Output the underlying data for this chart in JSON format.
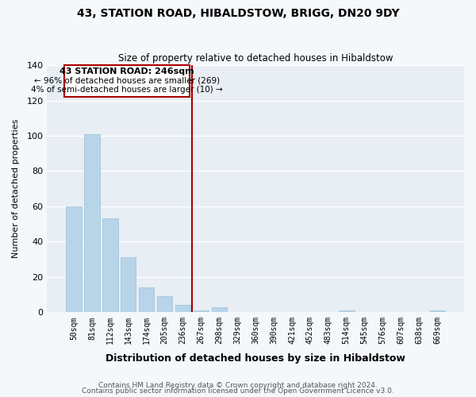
{
  "title": "43, STATION ROAD, HIBALDSTOW, BRIGG, DN20 9DY",
  "subtitle": "Size of property relative to detached houses in Hibaldstow",
  "xlabel": "Distribution of detached houses by size in Hibaldstow",
  "ylabel": "Number of detached properties",
  "bar_color": "#b8d4e8",
  "bar_edge_color": "#9bbfd8",
  "categories": [
    "50sqm",
    "81sqm",
    "112sqm",
    "143sqm",
    "174sqm",
    "205sqm",
    "236sqm",
    "267sqm",
    "298sqm",
    "329sqm",
    "360sqm",
    "390sqm",
    "421sqm",
    "452sqm",
    "483sqm",
    "514sqm",
    "545sqm",
    "576sqm",
    "607sqm",
    "638sqm",
    "669sqm"
  ],
  "values": [
    60,
    101,
    53,
    31,
    14,
    9,
    4,
    1,
    3,
    0,
    0,
    0,
    0,
    0,
    0,
    1,
    0,
    0,
    0,
    0,
    1
  ],
  "ylim": [
    0,
    140
  ],
  "yticks": [
    0,
    20,
    40,
    60,
    80,
    100,
    120,
    140
  ],
  "vline_x": 6.5,
  "vline_color": "#aa0000",
  "annotation_title": "43 STATION ROAD: 246sqm",
  "annotation_line1": "← 96% of detached houses are smaller (269)",
  "annotation_line2": "4% of semi-detached houses are larger (10) →",
  "annotation_box_color": "#ffffff",
  "annotation_box_edge": "#aa0000",
  "footer1": "Contains HM Land Registry data © Crown copyright and database right 2024.",
  "footer2": "Contains public sector information licensed under the Open Government Licence v3.0.",
  "background_color": "#e8eef4",
  "plot_background": "#f5f8fb"
}
